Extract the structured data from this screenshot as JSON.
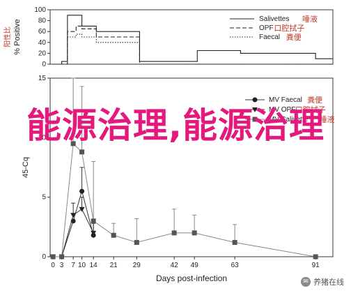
{
  "chart_data": [
    {
      "type": "line",
      "panel": "top",
      "ylabel": "% Positive",
      "ylabel_cn": "阳性比",
      "ylim": [
        0,
        100
      ],
      "yticks": [
        0,
        20,
        40,
        60,
        80,
        100
      ],
      "grid": false,
      "legend_position": "top-right",
      "series": [
        {
          "name": "Salivettes",
          "name_cn": "唾液",
          "style": "solid",
          "steps": [
            [
              0,
              0
            ],
            [
              3,
              5
            ],
            [
              5,
              90
            ],
            [
              10,
              70
            ],
            [
              15,
              60
            ],
            [
              30,
              5
            ],
            [
              50,
              25
            ],
            [
              65,
              20
            ],
            [
              91,
              10
            ],
            [
              97,
              10
            ]
          ]
        },
        {
          "name": "OPF",
          "name_cn": "口腔拭子",
          "style": "dashed",
          "steps": [
            [
              0,
              0
            ],
            [
              5,
              60
            ],
            [
              8,
              70
            ],
            [
              10,
              65
            ],
            [
              15,
              50
            ],
            [
              30,
              0
            ],
            [
              97,
              0
            ]
          ]
        },
        {
          "name": "Faecal",
          "name_cn": "粪便",
          "style": "dotted",
          "steps": [
            [
              0,
              0
            ],
            [
              5,
              50
            ],
            [
              8,
              55
            ],
            [
              10,
              50
            ],
            [
              15,
              40
            ],
            [
              30,
              0
            ],
            [
              97,
              0
            ]
          ]
        }
      ]
    },
    {
      "type": "line",
      "panel": "bottom",
      "xlabel": "Days post-infection",
      "ylabel": "45-Cq",
      "ylim": [
        0,
        15
      ],
      "yticks": [
        0,
        5,
        10,
        15
      ],
      "xticks": [
        0,
        3,
        7,
        10,
        14,
        21,
        29,
        42,
        49,
        63,
        91
      ],
      "xlim": [
        -1,
        97
      ],
      "grid": false,
      "legend_position": "top-right",
      "series": [
        {
          "name": "MV Faecal",
          "name_cn": "粪便",
          "marker": "circle",
          "x": [
            0,
            3,
            7,
            10,
            14
          ],
          "y": [
            0,
            0,
            3,
            5.5,
            1.8
          ],
          "err": [
            0,
            0,
            0,
            2,
            1
          ]
        },
        {
          "name": "MV OPF",
          "name_cn": "口腔拭子",
          "marker": "triangle",
          "x": [
            0,
            3,
            7,
            10,
            14
          ],
          "y": [
            0,
            0,
            3.5,
            4,
            2
          ],
          "err": [
            0,
            0,
            1,
            1,
            1
          ]
        },
        {
          "name": "MV Salivette",
          "name_cn": "唾液",
          "marker": "square",
          "x": [
            0,
            3,
            7,
            10,
            14,
            21,
            29,
            42,
            49,
            63,
            91
          ],
          "y": [
            0,
            0,
            9.5,
            8.8,
            3,
            1.8,
            1.2,
            2,
            2,
            1.2,
            0
          ],
          "err": [
            0,
            0,
            5.5,
            5.5,
            5,
            1,
            2,
            2,
            1.5,
            1.5,
            0
          ]
        }
      ]
    }
  ],
  "overlay": {
    "text": "能源治理,能源治理"
  },
  "watermark": {
    "text": "养猪在线"
  }
}
